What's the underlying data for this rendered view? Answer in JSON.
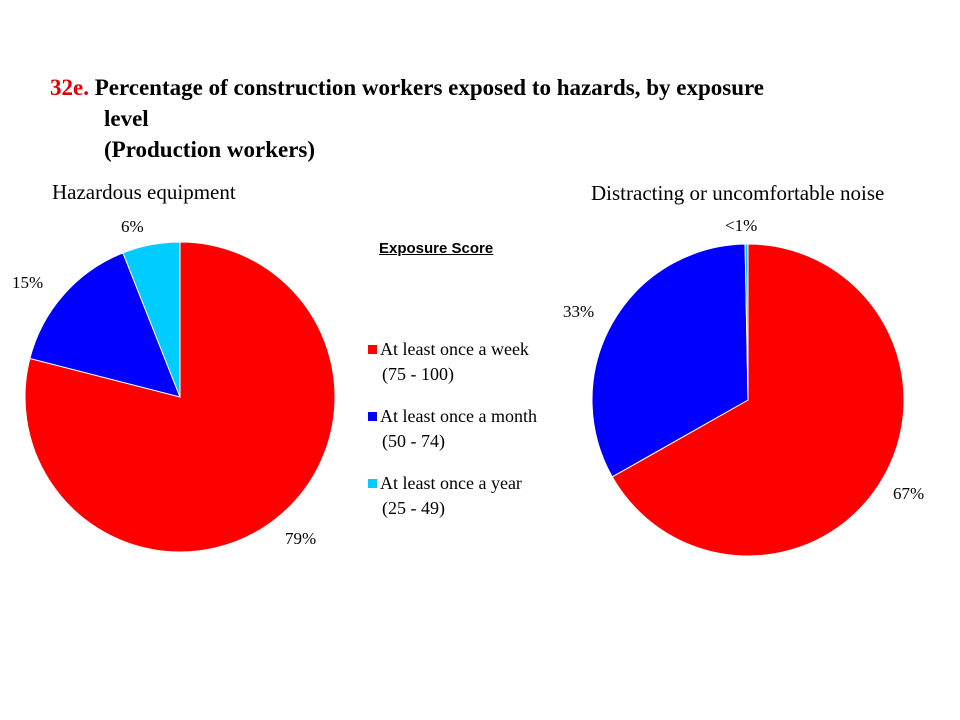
{
  "title": {
    "number": "32e.",
    "line1": "Percentage of construction workers exposed to hazards, by exposure",
    "line2": "level",
    "line3": "(Production workers)"
  },
  "colors": {
    "title_number": "#e00000",
    "week": "#ff0000",
    "month": "#0000ff",
    "year": "#00ccff"
  },
  "legend": {
    "title": "Exposure  Score",
    "items": [
      {
        "label": "At least once a week",
        "range": "(75 - 100)",
        "color": "#ff0000"
      },
      {
        "label": "At least once a month",
        "range": "(50 - 74)",
        "color": "#0000ff"
      },
      {
        "label": "At least once a year",
        "range": "(25 - 49)",
        "color": "#00ccff"
      }
    ]
  },
  "chart_data": [
    {
      "type": "pie",
      "title": "Hazardous equipment",
      "slices": [
        {
          "category": "At least once a week (75 - 100)",
          "value": 79,
          "label": "79%",
          "color": "#ff0000"
        },
        {
          "category": "At least once a month (50 - 74)",
          "value": 15,
          "label": "15%",
          "color": "#0000ff"
        },
        {
          "category": "At least once a year (25 - 49)",
          "value": 6,
          "label": "6%",
          "color": "#00ccff"
        }
      ]
    },
    {
      "type": "pie",
      "title": "Distracting or uncomfortable noise",
      "slices": [
        {
          "category": "At least once a week (75 - 100)",
          "value": 67,
          "label": "67%",
          "color": "#ff0000"
        },
        {
          "category": "At least once a month (50 - 74)",
          "value": 33,
          "label": "33%",
          "color": "#0000ff"
        },
        {
          "category": "At least once a year (25 - 49)",
          "value": 0.3,
          "label": "<1%",
          "color": "#00ccff"
        }
      ]
    }
  ]
}
